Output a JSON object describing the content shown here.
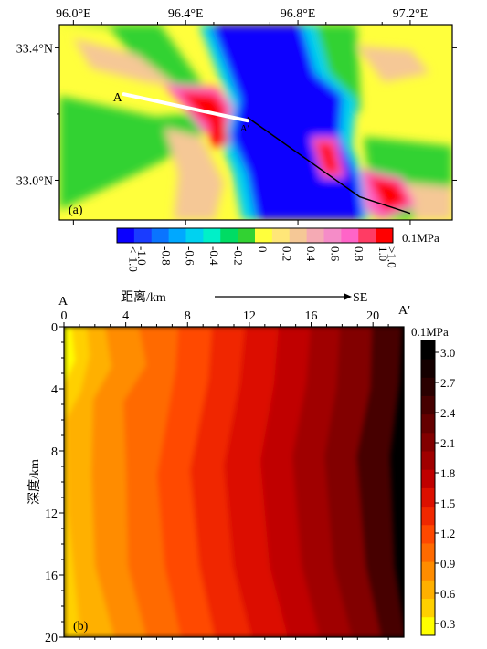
{
  "panel_a": {
    "label": "(a)",
    "x_ticks": [
      "96.0°E",
      "96.4°E",
      "96.8°E",
      "97.2°E"
    ],
    "y_ticks": [
      "33.4°N",
      "33.0°N"
    ],
    "profile_start": "A",
    "profile_end": "A′",
    "colorbar": {
      "unit": "0.1MPa",
      "labels": [
        "<-1.0",
        "-1.0",
        "-0.8",
        "-0.6",
        "-0.4",
        "-0.2",
        "0",
        "0.2",
        "0.4",
        "0.6",
        "0.8",
        "1.0",
        ">1.0"
      ],
      "colors": [
        "#0a00ff",
        "#1a3cff",
        "#0a74ff",
        "#00a8ff",
        "#00d2f0",
        "#00f0c8",
        "#00dc64",
        "#32d232",
        "#ffff3c",
        "#ffe678",
        "#f5c896",
        "#f5aab4",
        "#f58cc8",
        "#ff64c8",
        "#ff3c64",
        "#ff0000"
      ]
    }
  },
  "panel_b": {
    "label": "(b)",
    "start_label": "A",
    "end_label": "A′",
    "direction_label": "SE",
    "xlabel": "距离/km",
    "ylabel": "深度/km",
    "x_ticks": [
      "0",
      "4",
      "8",
      "12",
      "16",
      "20"
    ],
    "y_ticks": [
      "0",
      "4",
      "8",
      "12",
      "16",
      "20"
    ],
    "colorbar": {
      "unit": "0.1MPa",
      "labels": [
        "3.0",
        "2.7",
        "2.4",
        "2.1",
        "1.8",
        "1.5",
        "1.2",
        "0.9",
        "0.6",
        "0.3"
      ],
      "colors": [
        "#ffff00",
        "#ffd000",
        "#ffb000",
        "#ff8c00",
        "#ff6a00",
        "#ff4800",
        "#f02800",
        "#dc1000",
        "#c00000",
        "#a00000",
        "#820000",
        "#640000",
        "#460000",
        "#2a0000",
        "#140000",
        "#000000"
      ]
    }
  },
  "chart_data": [
    {
      "type": "heatmap",
      "title": "",
      "xlabel": "",
      "ylabel": "",
      "xlim": [
        95.95,
        97.35
      ],
      "ylim": [
        32.88,
        33.47
      ],
      "colorbar_unit": "0.1MPa",
      "colorbar_range": [
        -1.0,
        1.0
      ],
      "profile_line": {
        "start": [
          96.18,
          33.26
        ],
        "end": [
          96.62,
          33.18
        ]
      },
      "rupture_trace": [
        [
          96.62,
          33.19
        ],
        [
          97.02,
          32.95
        ],
        [
          97.2,
          32.9
        ]
      ]
    },
    {
      "type": "heatmap",
      "title": "",
      "xlabel": "距离/km",
      "ylabel": "深度/km",
      "xlim": [
        0,
        22
      ],
      "ylim": [
        20,
        0
      ],
      "colorbar_unit": "0.1MPa",
      "colorbar_range": [
        0.3,
        3.0
      ],
      "trend": "stress increases from A (about 0.3) to A′ (above 3.0)"
    }
  ]
}
